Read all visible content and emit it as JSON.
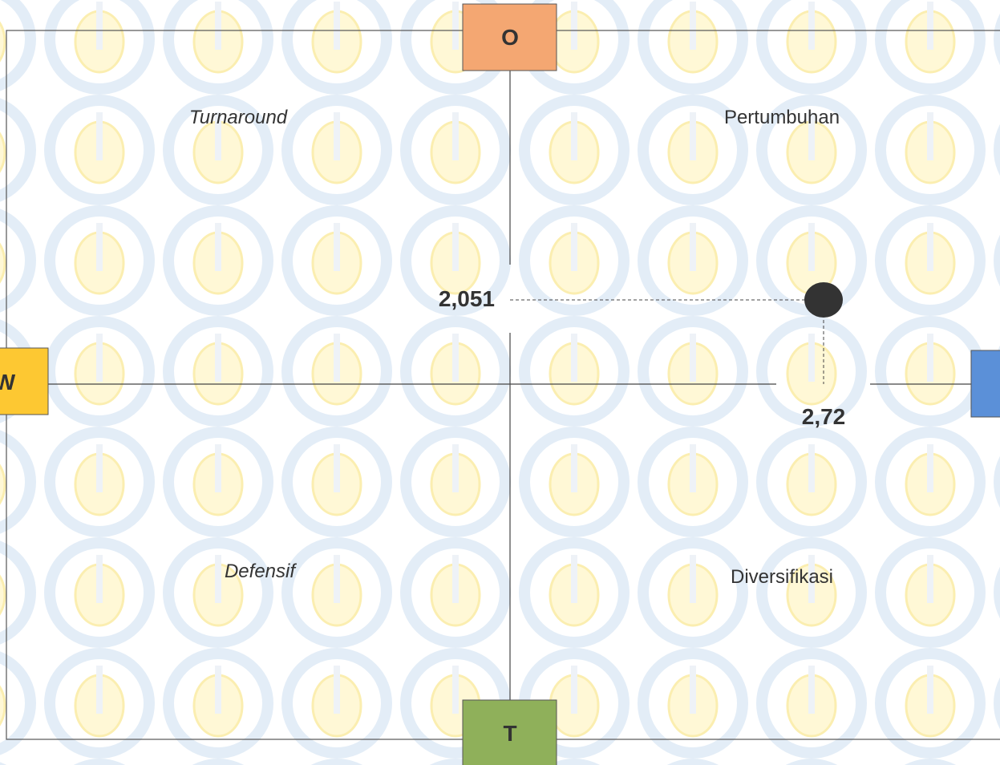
{
  "boxes": {
    "top": "O",
    "left": "W",
    "bottom": "T"
  },
  "quadrants": {
    "top_left": "Turnaround",
    "top_right": "Pertumbuhan",
    "bottom_left": "Defensif",
    "bottom_right": "Diversifikasi"
  },
  "point": {
    "y_label": "2,051",
    "x_label": "2,72"
  }
}
